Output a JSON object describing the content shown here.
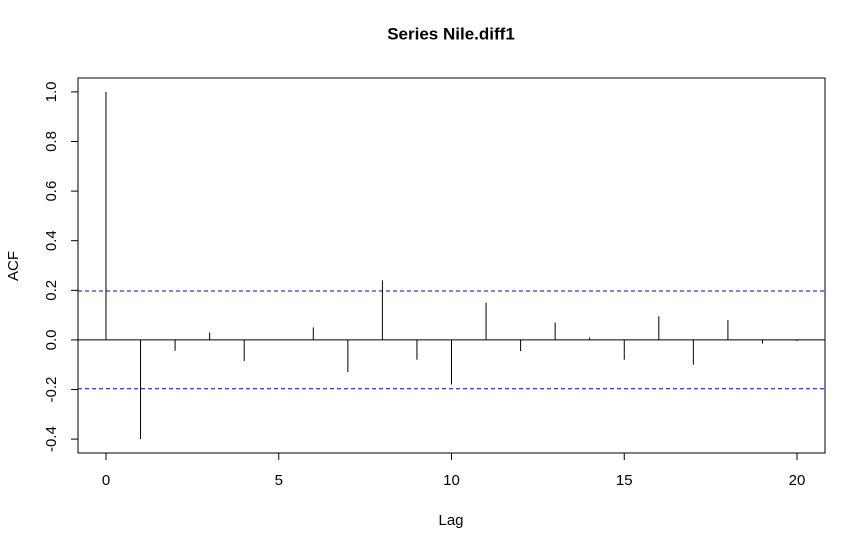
{
  "chart_data": {
    "type": "acf",
    "title": "Series  Nile.diff1",
    "x_label": "Lag",
    "y_label": "ACF",
    "x": [
      0,
      1,
      2,
      3,
      4,
      5,
      6,
      7,
      8,
      9,
      10,
      11,
      12,
      13,
      14,
      15,
      16,
      17,
      18,
      19,
      20
    ],
    "values": [
      1.0,
      -0.4,
      -0.044,
      0.03,
      -0.085,
      0.0,
      0.05,
      -0.13,
      0.24,
      -0.08,
      -0.18,
      0.15,
      -0.045,
      0.07,
      0.01,
      -0.08,
      0.095,
      -0.1,
      0.08,
      -0.015,
      -0.005
    ],
    "color": "#000000",
    "ci": [
      -0.197,
      0.197
    ],
    "ci_color": "#0000cc",
    "xlim": [
      -0.81,
      20.81
    ],
    "ylim": [
      -0.456,
      1.056
    ],
    "xticks": [
      0,
      5,
      10,
      15,
      20
    ],
    "yticks": [
      {
        "value": -0.4,
        "label": "-0.4"
      },
      -0.2,
      {
        "value": 0,
        "label": "0.0"
      },
      0.2,
      0.4,
      0.6,
      0.8,
      {
        "value": 1,
        "label": "1.0"
      }
    ]
  }
}
